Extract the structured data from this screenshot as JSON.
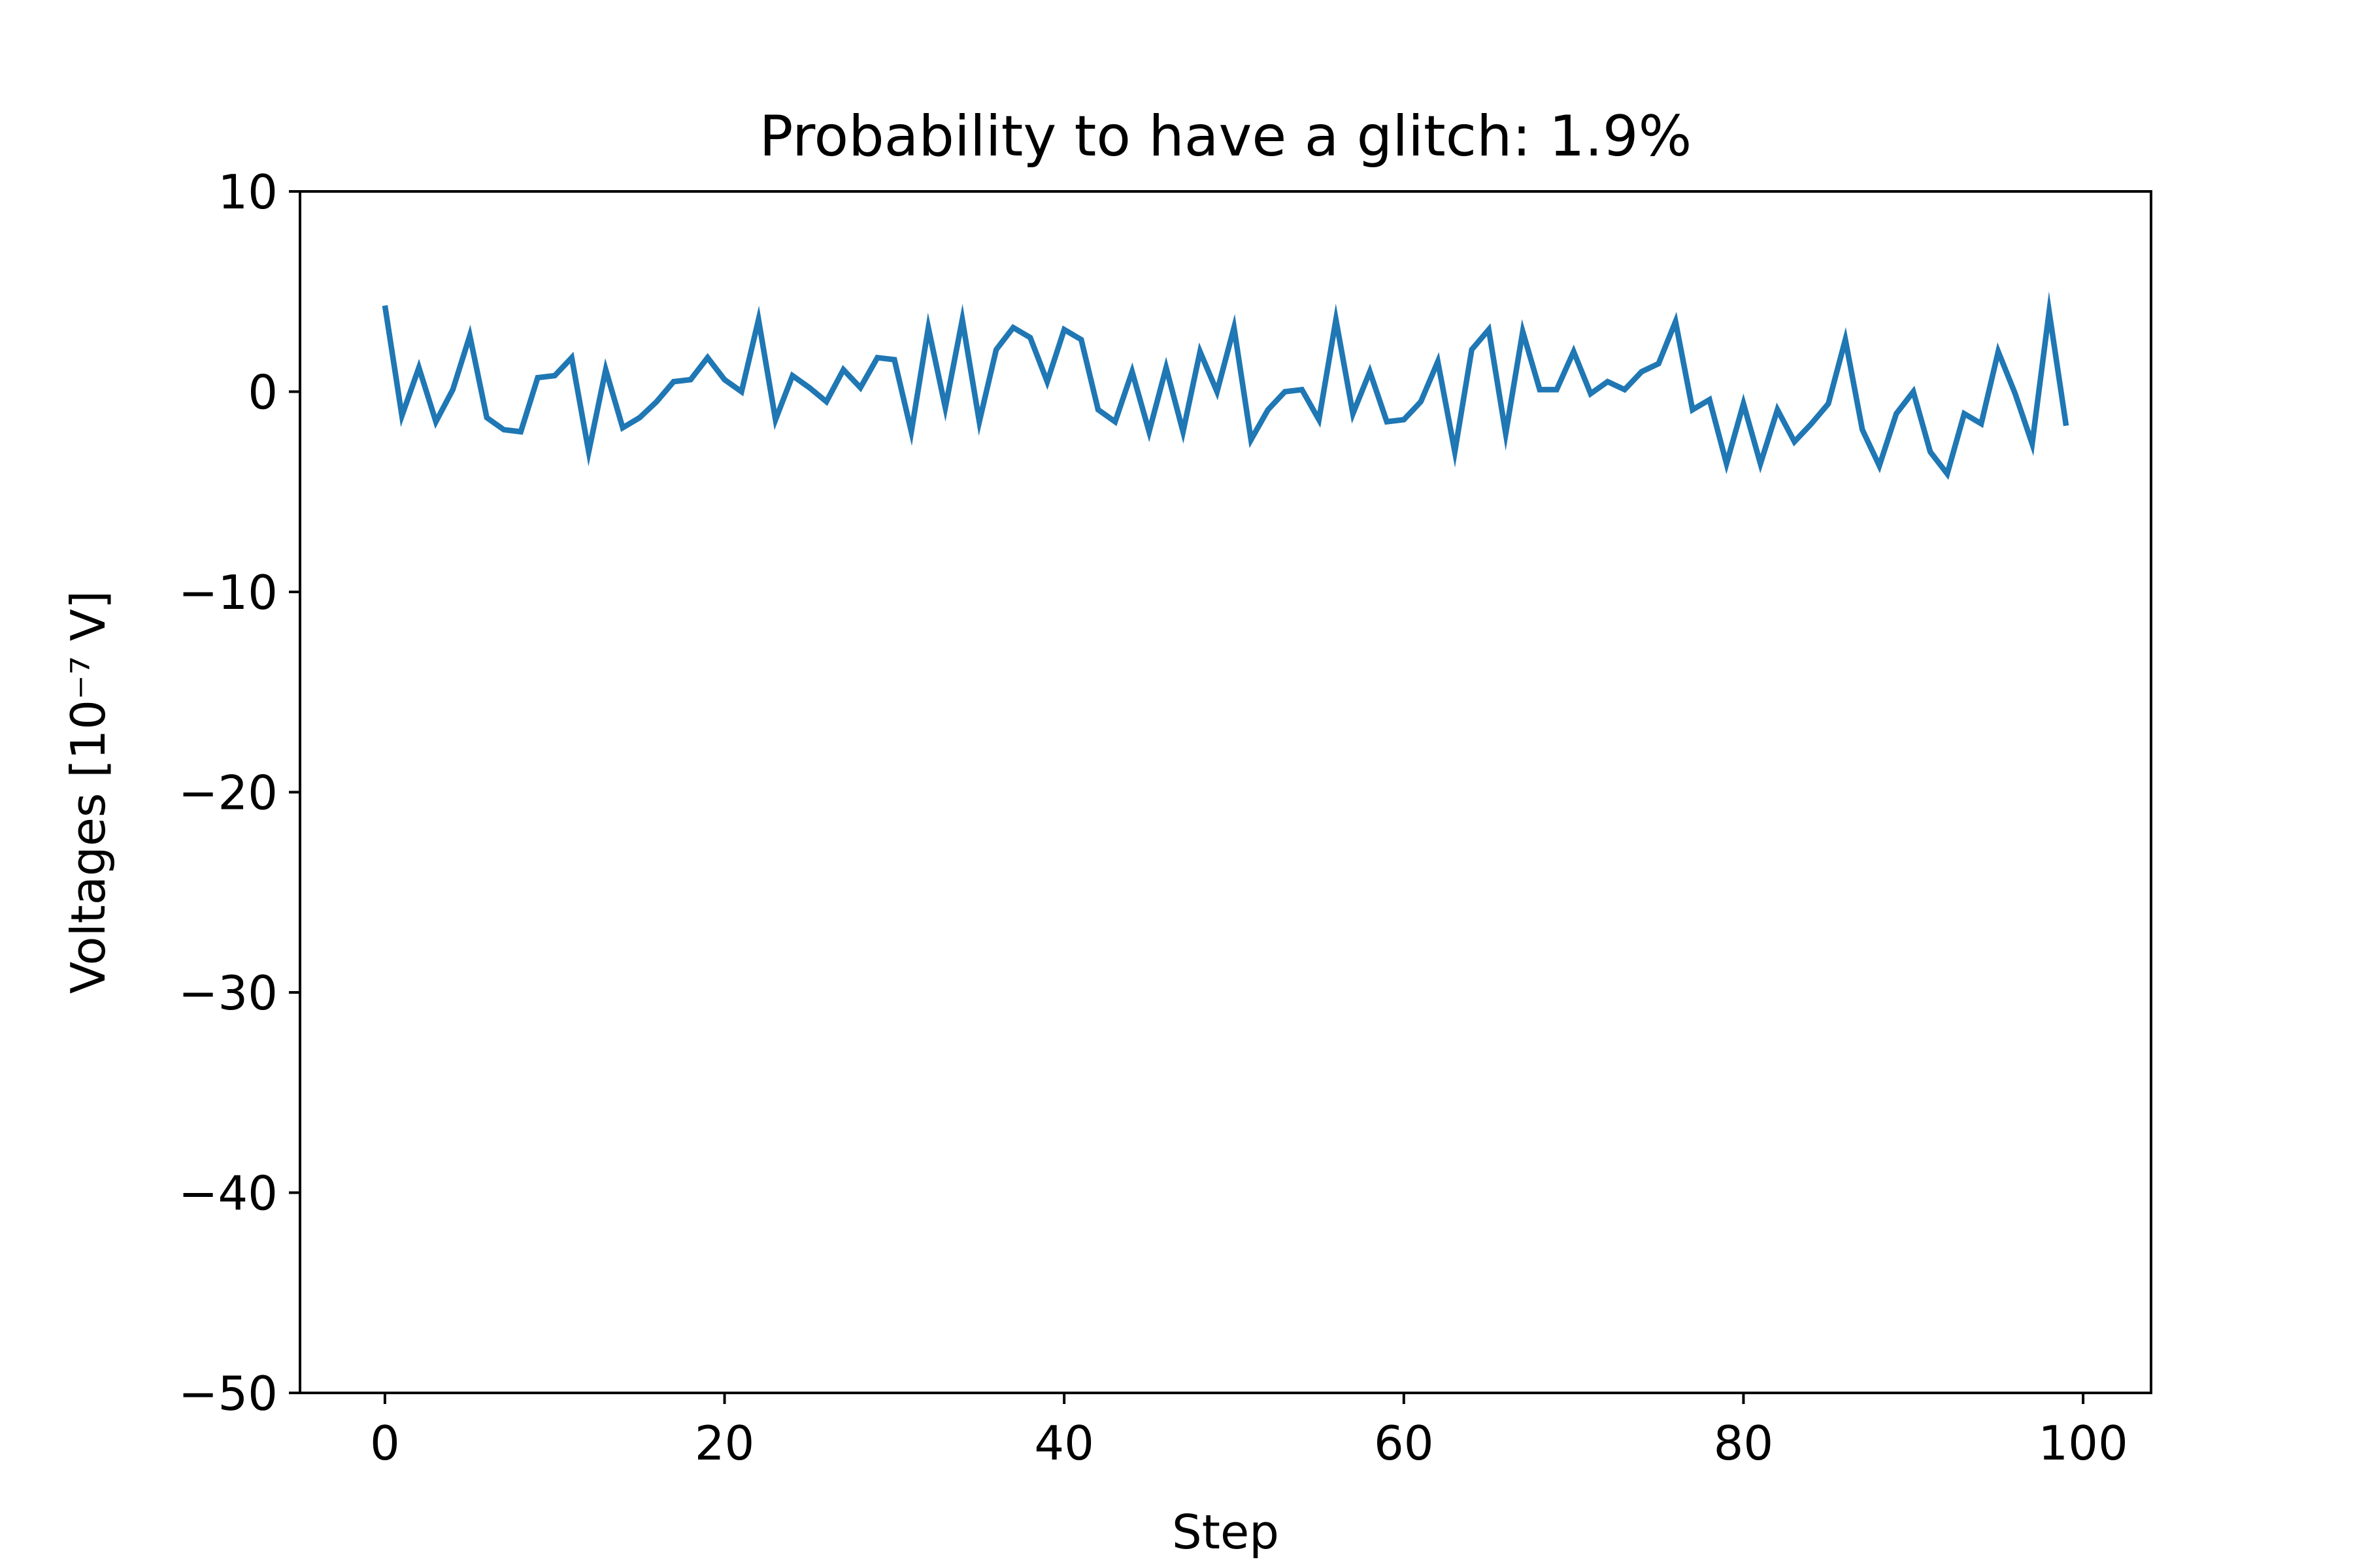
{
  "chart_data": {
    "type": "line",
    "title": "Probability to have a glitch: 1.9%",
    "xlabel": "Step",
    "ylabel": "Voltages [10⁻⁷ V]",
    "xlim": [
      -5,
      104
    ],
    "ylim": [
      -50,
      10
    ],
    "xticks": [
      0,
      20,
      40,
      60,
      80,
      100
    ],
    "yticks": [
      10,
      0,
      -10,
      -20,
      -30,
      -40,
      -50
    ],
    "xtick_labels": [
      "0",
      "20",
      "40",
      "60",
      "80",
      "100"
    ],
    "ytick_labels": [
      "10",
      "0",
      "−10",
      "−20",
      "−30",
      "−40",
      "−50"
    ],
    "grid": false,
    "series": [
      {
        "color": "#1f77b4",
        "x": [
          0,
          1,
          2,
          3,
          4,
          5,
          6,
          7,
          8,
          9,
          10,
          11,
          12,
          13,
          14,
          15,
          16,
          17,
          18,
          19,
          20,
          21,
          22,
          23,
          24,
          25,
          26,
          27,
          28,
          29,
          30,
          31,
          32,
          33,
          34,
          35,
          36,
          37,
          38,
          39,
          40,
          41,
          42,
          43,
          44,
          45,
          46,
          47,
          48,
          49,
          50,
          51,
          52,
          53,
          54,
          55,
          56,
          57,
          58,
          59,
          60,
          61,
          62,
          63,
          64,
          65,
          66,
          67,
          68,
          69,
          70,
          71,
          72,
          73,
          74,
          75,
          76,
          77,
          78,
          79,
          80,
          81,
          82,
          83,
          84,
          85,
          86,
          87,
          88,
          89,
          90,
          91,
          92,
          93,
          94,
          95,
          96,
          97,
          98,
          99
        ],
        "values": [
          4.3,
          -1.2,
          1.2,
          -1.5,
          0.1,
          2.8,
          -1.3,
          -1.9,
          -2.0,
          0.7,
          0.8,
          1.7,
          -3.0,
          1.1,
          -1.8,
          -1.3,
          -0.5,
          0.5,
          0.6,
          1.7,
          0.6,
          0.0,
          3.6,
          -1.4,
          0.8,
          0.2,
          -0.5,
          1.1,
          0.2,
          1.7,
          1.6,
          -2.0,
          3.2,
          -0.8,
          3.6,
          -1.5,
          2.1,
          3.2,
          2.7,
          0.5,
          3.1,
          2.6,
          -0.9,
          -1.5,
          1.0,
          -2.0,
          1.2,
          -2.0,
          2.0,
          0.0,
          3.2,
          -2.4,
          -0.9,
          0.0,
          0.1,
          -1.4,
          3.6,
          -1.1,
          1.0,
          -1.5,
          -1.4,
          -0.5,
          1.5,
          -3.0,
          2.1,
          3.1,
          -2.1,
          3.0,
          0.1,
          0.1,
          2.0,
          -0.1,
          0.5,
          0.1,
          1.0,
          1.4,
          3.5,
          -0.9,
          -0.4,
          -3.6,
          -0.6,
          -3.6,
          -0.9,
          -2.5,
          -1.6,
          -0.6,
          2.6,
          -1.9,
          -3.7,
          -1.1,
          0.0,
          -3.0,
          -4.1,
          -1.1,
          -1.6,
          2.0,
          -0.1,
          -2.6,
          4.0,
          -1.7
        ]
      }
    ]
  }
}
